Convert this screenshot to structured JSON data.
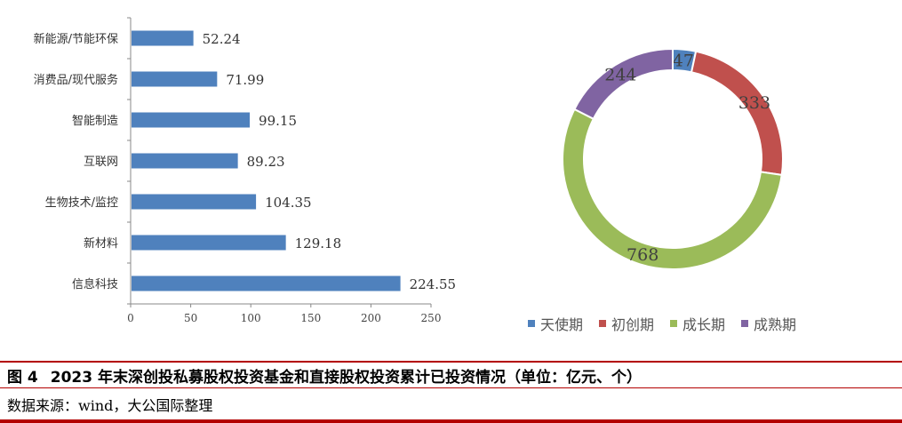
{
  "chart_data": [
    {
      "type": "bar",
      "orientation": "horizontal",
      "categories": [
        "新能源/节能环保",
        "消费品/现代服务",
        "智能制造",
        "互联网",
        "生物技术/监控",
        "新材料",
        "信息科技"
      ],
      "values": [
        52.24,
        71.99,
        99.15,
        89.23,
        104.35,
        129.18,
        224.55
      ],
      "value_labels": [
        "52.24",
        "71.99",
        "99.15",
        "89.23",
        "104.35",
        "129.18",
        "224.55"
      ],
      "xlim": [
        0,
        250
      ],
      "xticks": [
        "0",
        "50",
        "100",
        "150",
        "200",
        "250"
      ],
      "color": "#4F81BD",
      "grid": false
    },
    {
      "type": "pie",
      "style": "donut",
      "labels": [
        "天使期",
        "初创期",
        "成长期",
        "成熟期"
      ],
      "values": [
        47,
        333,
        768,
        244
      ],
      "value_labels": [
        "47",
        "333",
        "768",
        "244"
      ],
      "colors": [
        "#4F81BD",
        "#C0504D",
        "#9BBB59",
        "#8064A2"
      ],
      "legend_position": "bottom"
    }
  ],
  "caption": {
    "figure_number": "图 4",
    "title": "2023 年末深创投私募股权投资基金和直接股权投资累计已投资情况（单位：亿元、个）",
    "source": "数据来源：wind，大公国际整理"
  }
}
